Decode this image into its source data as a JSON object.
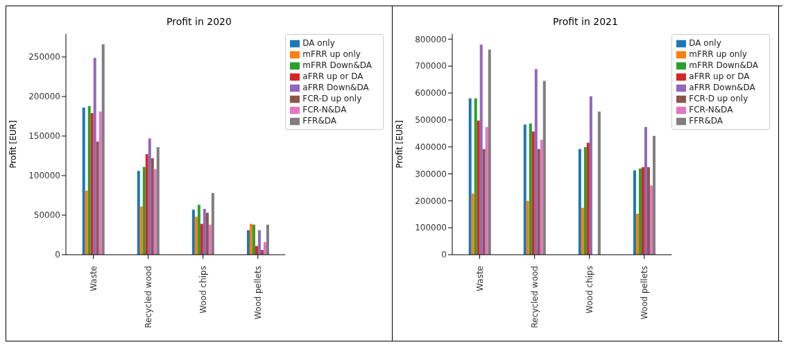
{
  "chart_data": [
    {
      "type": "bar",
      "title": "Profit in 2020",
      "ylabel": "Profit [EUR]",
      "categories": [
        "Waste",
        "Recycled wood",
        "Wood chips",
        "Wood pellets"
      ],
      "series": [
        {
          "name": "DA only",
          "color": "#1f77b4",
          "values": [
            186000,
            106000,
            57000,
            31000
          ]
        },
        {
          "name": "mFRR up only",
          "color": "#ff7f0e",
          "values": [
            81000,
            61000,
            48000,
            39000
          ]
        },
        {
          "name": "mFRR Down&DA",
          "color": "#2ca02c",
          "values": [
            188000,
            111000,
            63000,
            38000
          ]
        },
        {
          "name": "aFRR up or DA",
          "color": "#d62728",
          "values": [
            179000,
            127000,
            39000,
            11000
          ]
        },
        {
          "name": "aFRR Down&DA",
          "color": "#9467bd",
          "values": [
            249000,
            147000,
            58000,
            31000
          ]
        },
        {
          "name": "FCR-D up only",
          "color": "#8c564b",
          "values": [
            143000,
            122000,
            53000,
            6000
          ]
        },
        {
          "name": "FCR-N&DA",
          "color": "#e377c2",
          "values": [
            181000,
            108000,
            38000,
            16000
          ]
        },
        {
          "name": "FFR&DA",
          "color": "#7f7f7f",
          "values": [
            266000,
            136000,
            78000,
            38000
          ]
        }
      ],
      "ylim": [
        0,
        279000
      ],
      "yticks": [
        0,
        50000,
        100000,
        150000,
        200000,
        250000
      ],
      "grid": false,
      "legend": "top right"
    },
    {
      "type": "bar",
      "title": "Profit in 2021",
      "ylabel": "Profit [EUR]",
      "categories": [
        "Waste",
        "Recycled wood",
        "Wood chips",
        "Wood pellets"
      ],
      "series": [
        {
          "name": "DA only",
          "color": "#1f77b4",
          "values": [
            580000,
            483000,
            392000,
            313000
          ]
        },
        {
          "name": "mFRR up only",
          "color": "#ff7f0e",
          "values": [
            227000,
            200000,
            174000,
            152000
          ]
        },
        {
          "name": "mFRR Down&DA",
          "color": "#2ca02c",
          "values": [
            580000,
            487000,
            399000,
            320000
          ]
        },
        {
          "name": "aFRR up or DA",
          "color": "#d62728",
          "values": [
            498000,
            457000,
            415000,
            325000
          ]
        },
        {
          "name": "aFRR Down&DA",
          "color": "#9467bd",
          "values": [
            780000,
            689000,
            588000,
            474000
          ]
        },
        {
          "name": "FCR-D up only",
          "color": "#8c564b",
          "values": [
            392000,
            392000,
            null,
            325000
          ]
        },
        {
          "name": "FCR-N&DA",
          "color": "#e377c2",
          "values": [
            474000,
            427000,
            null,
            257000
          ]
        },
        {
          "name": "FFR&DA",
          "color": "#7f7f7f",
          "values": [
            761000,
            645000,
            531000,
            441000
          ]
        }
      ],
      "ylim": [
        0,
        819000
      ],
      "yticks": [
        0,
        100000,
        200000,
        300000,
        400000,
        500000,
        600000,
        700000,
        800000
      ],
      "grid": false,
      "legend": "top right"
    }
  ]
}
